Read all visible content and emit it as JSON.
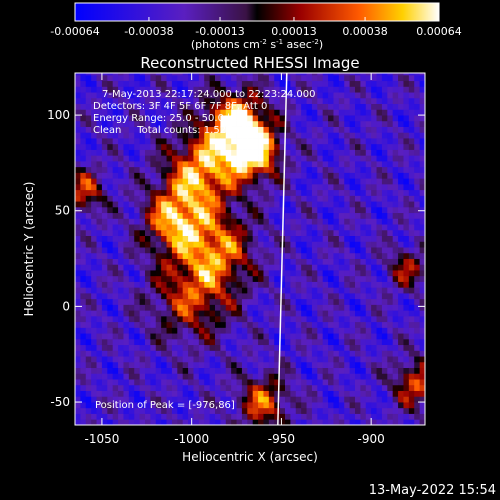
{
  "colorbar": {
    "ticks": [
      "-0.00064",
      "-0.00038",
      "-0.00013",
      "0.00013",
      "0.00038",
      "0.00064"
    ],
    "tick_values": [
      -0.00064,
      -0.00038,
      -0.00013,
      0.00013,
      0.00038,
      0.00064
    ],
    "range": [
      -0.00064,
      0.00064
    ]
  },
  "unit_label": {
    "base": "(photons cm",
    "sup1": "-2",
    "mid": " s",
    "sup2": "-1",
    "mid2": " asec",
    "sup3": "-2",
    "end": ")"
  },
  "footer": {
    "timestamp": "13-May-2022 15:54"
  },
  "chart_data": {
    "type": "heatmap",
    "title": "Reconstructed RHESSI Image",
    "xlabel": "Heliocentric X (arcsec)",
    "ylabel": "Heliocentric Y (arcsec)",
    "xlim": [
      -1065,
      -870
    ],
    "ylim": [
      -62,
      122
    ],
    "xticks": [
      -1050,
      -1000,
      -950,
      -900
    ],
    "xtick_labels": [
      "-1050",
      "-1000",
      "-950",
      "-900"
    ],
    "yticks": [
      -50,
      0,
      50,
      100
    ],
    "ytick_labels": [
      "-50",
      "0",
      "50",
      "100"
    ],
    "annotations": {
      "time": "7-May-2013 22:17:24.000 to 22:23:24.000",
      "detectors": "Detectors: 3F 4F 5F 6F 7F 8F, Att 0",
      "energy": "Energy Range: 25.0 - 50.0 keV",
      "clean": "Clean     Total counts: 1.52E+04",
      "peak": "Position of Peak = [-976,86]"
    },
    "peak_position": [
      -976,
      86
    ],
    "limb_line": [
      [
        -947,
        122
      ],
      [
        -952,
        -62
      ]
    ],
    "sources": [
      {
        "x": -975,
        "y": 95,
        "sigma": 12,
        "amp": 0.00064
      },
      {
        "x": -965,
        "y": 80,
        "sigma": 10,
        "amp": 0.0005
      },
      {
        "x": -995,
        "y": 70,
        "sigma": 14,
        "amp": 0.00045
      },
      {
        "x": -1010,
        "y": 45,
        "sigma": 12,
        "amp": 0.0004
      },
      {
        "x": -985,
        "y": 30,
        "sigma": 14,
        "amp": 0.0003
      },
      {
        "x": -1000,
        "y": 5,
        "sigma": 16,
        "amp": 0.00022
      },
      {
        "x": -960,
        "y": -50,
        "sigma": 10,
        "amp": 0.0003
      },
      {
        "x": -1060,
        "y": 60,
        "sigma": 8,
        "amp": 0.00025
      },
      {
        "x": -875,
        "y": -40,
        "sigma": 9,
        "amp": 0.00028
      },
      {
        "x": -880,
        "y": 20,
        "sigma": 8,
        "amp": 0.00012
      }
    ]
  }
}
